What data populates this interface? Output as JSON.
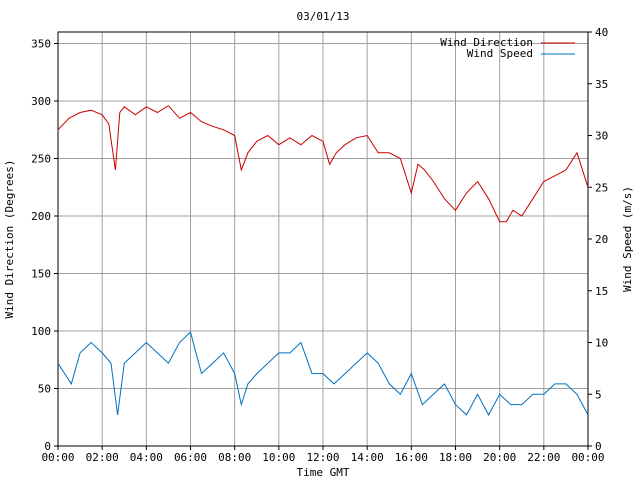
{
  "chart_data": {
    "type": "line",
    "title": "03/01/13",
    "xlabel": "Time GMT",
    "ylabel_left": "Wind Direction (Degrees)",
    "ylabel_right": "Wind Speed (m/s)",
    "x_ticks": [
      "00:00",
      "02:00",
      "04:00",
      "06:00",
      "08:00",
      "10:00",
      "12:00",
      "14:00",
      "16:00",
      "18:00",
      "20:00",
      "22:00",
      "00:00"
    ],
    "y_left_ticks": [
      "0",
      "50",
      "100",
      "150",
      "200",
      "250",
      "300",
      "350"
    ],
    "y_right_ticks": [
      "0",
      "5",
      "10",
      "15",
      "20",
      "25",
      "30",
      "35",
      "40"
    ],
    "xlim": [
      0,
      24
    ],
    "ylim_left": [
      0,
      360
    ],
    "ylim_right": [
      0,
      40
    ],
    "grid": true,
    "legend_position": "top-right",
    "series": [
      {
        "name": "Wind Direction",
        "axis": "left",
        "color": "#cc0000",
        "x": [
          0,
          0.5,
          1,
          1.5,
          2,
          2.3,
          2.6,
          2.8,
          3,
          3.5,
          4,
          4.5,
          5,
          5.5,
          6,
          6.5,
          7,
          7.5,
          8,
          8.3,
          8.6,
          9,
          9.5,
          10,
          10.5,
          11,
          11.5,
          12,
          12.3,
          12.6,
          13,
          13.5,
          14,
          14.5,
          15,
          15.5,
          16,
          16.3,
          16.6,
          17,
          17.5,
          18,
          18.5,
          19,
          19.5,
          20,
          20.3,
          20.6,
          21,
          21.5,
          22,
          22.5,
          23,
          23.5,
          24
        ],
        "y": [
          275,
          285,
          290,
          292,
          288,
          280,
          240,
          290,
          295,
          288,
          295,
          290,
          296,
          285,
          290,
          282,
          278,
          275,
          270,
          240,
          255,
          265,
          270,
          262,
          268,
          262,
          270,
          265,
          245,
          255,
          262,
          268,
          270,
          255,
          255,
          250,
          220,
          245,
          240,
          230,
          215,
          205,
          220,
          230,
          215,
          195,
          195,
          205,
          200,
          215,
          230,
          235,
          240,
          255,
          225
        ]
      },
      {
        "name": "Wind Speed",
        "axis": "right",
        "color": "#0070c0",
        "x": [
          0,
          0.3,
          0.6,
          1,
          1.5,
          2,
          2.4,
          2.7,
          3,
          3.5,
          4,
          4.5,
          5,
          5.5,
          6,
          6.5,
          7,
          7.5,
          8,
          8.3,
          8.6,
          9,
          9.5,
          10,
          10.5,
          11,
          11.5,
          12,
          12.5,
          13,
          13.5,
          14,
          14.5,
          15,
          15.5,
          16,
          16.5,
          17,
          17.5,
          18,
          18.5,
          19,
          19.5,
          20,
          20.5,
          21,
          21.5,
          22,
          22.5,
          23,
          23.5,
          24
        ],
        "y": [
          8,
          7,
          6,
          9,
          10,
          9,
          8,
          3,
          8,
          9,
          10,
          9,
          8,
          10,
          11,
          7,
          8,
          9,
          7,
          4,
          6,
          7,
          8,
          9,
          9,
          10,
          7,
          7,
          6,
          7,
          8,
          9,
          8,
          6,
          5,
          7,
          4,
          5,
          6,
          4,
          3,
          5,
          3,
          5,
          4,
          4,
          5,
          5,
          6,
          6,
          5,
          3
        ]
      }
    ]
  }
}
